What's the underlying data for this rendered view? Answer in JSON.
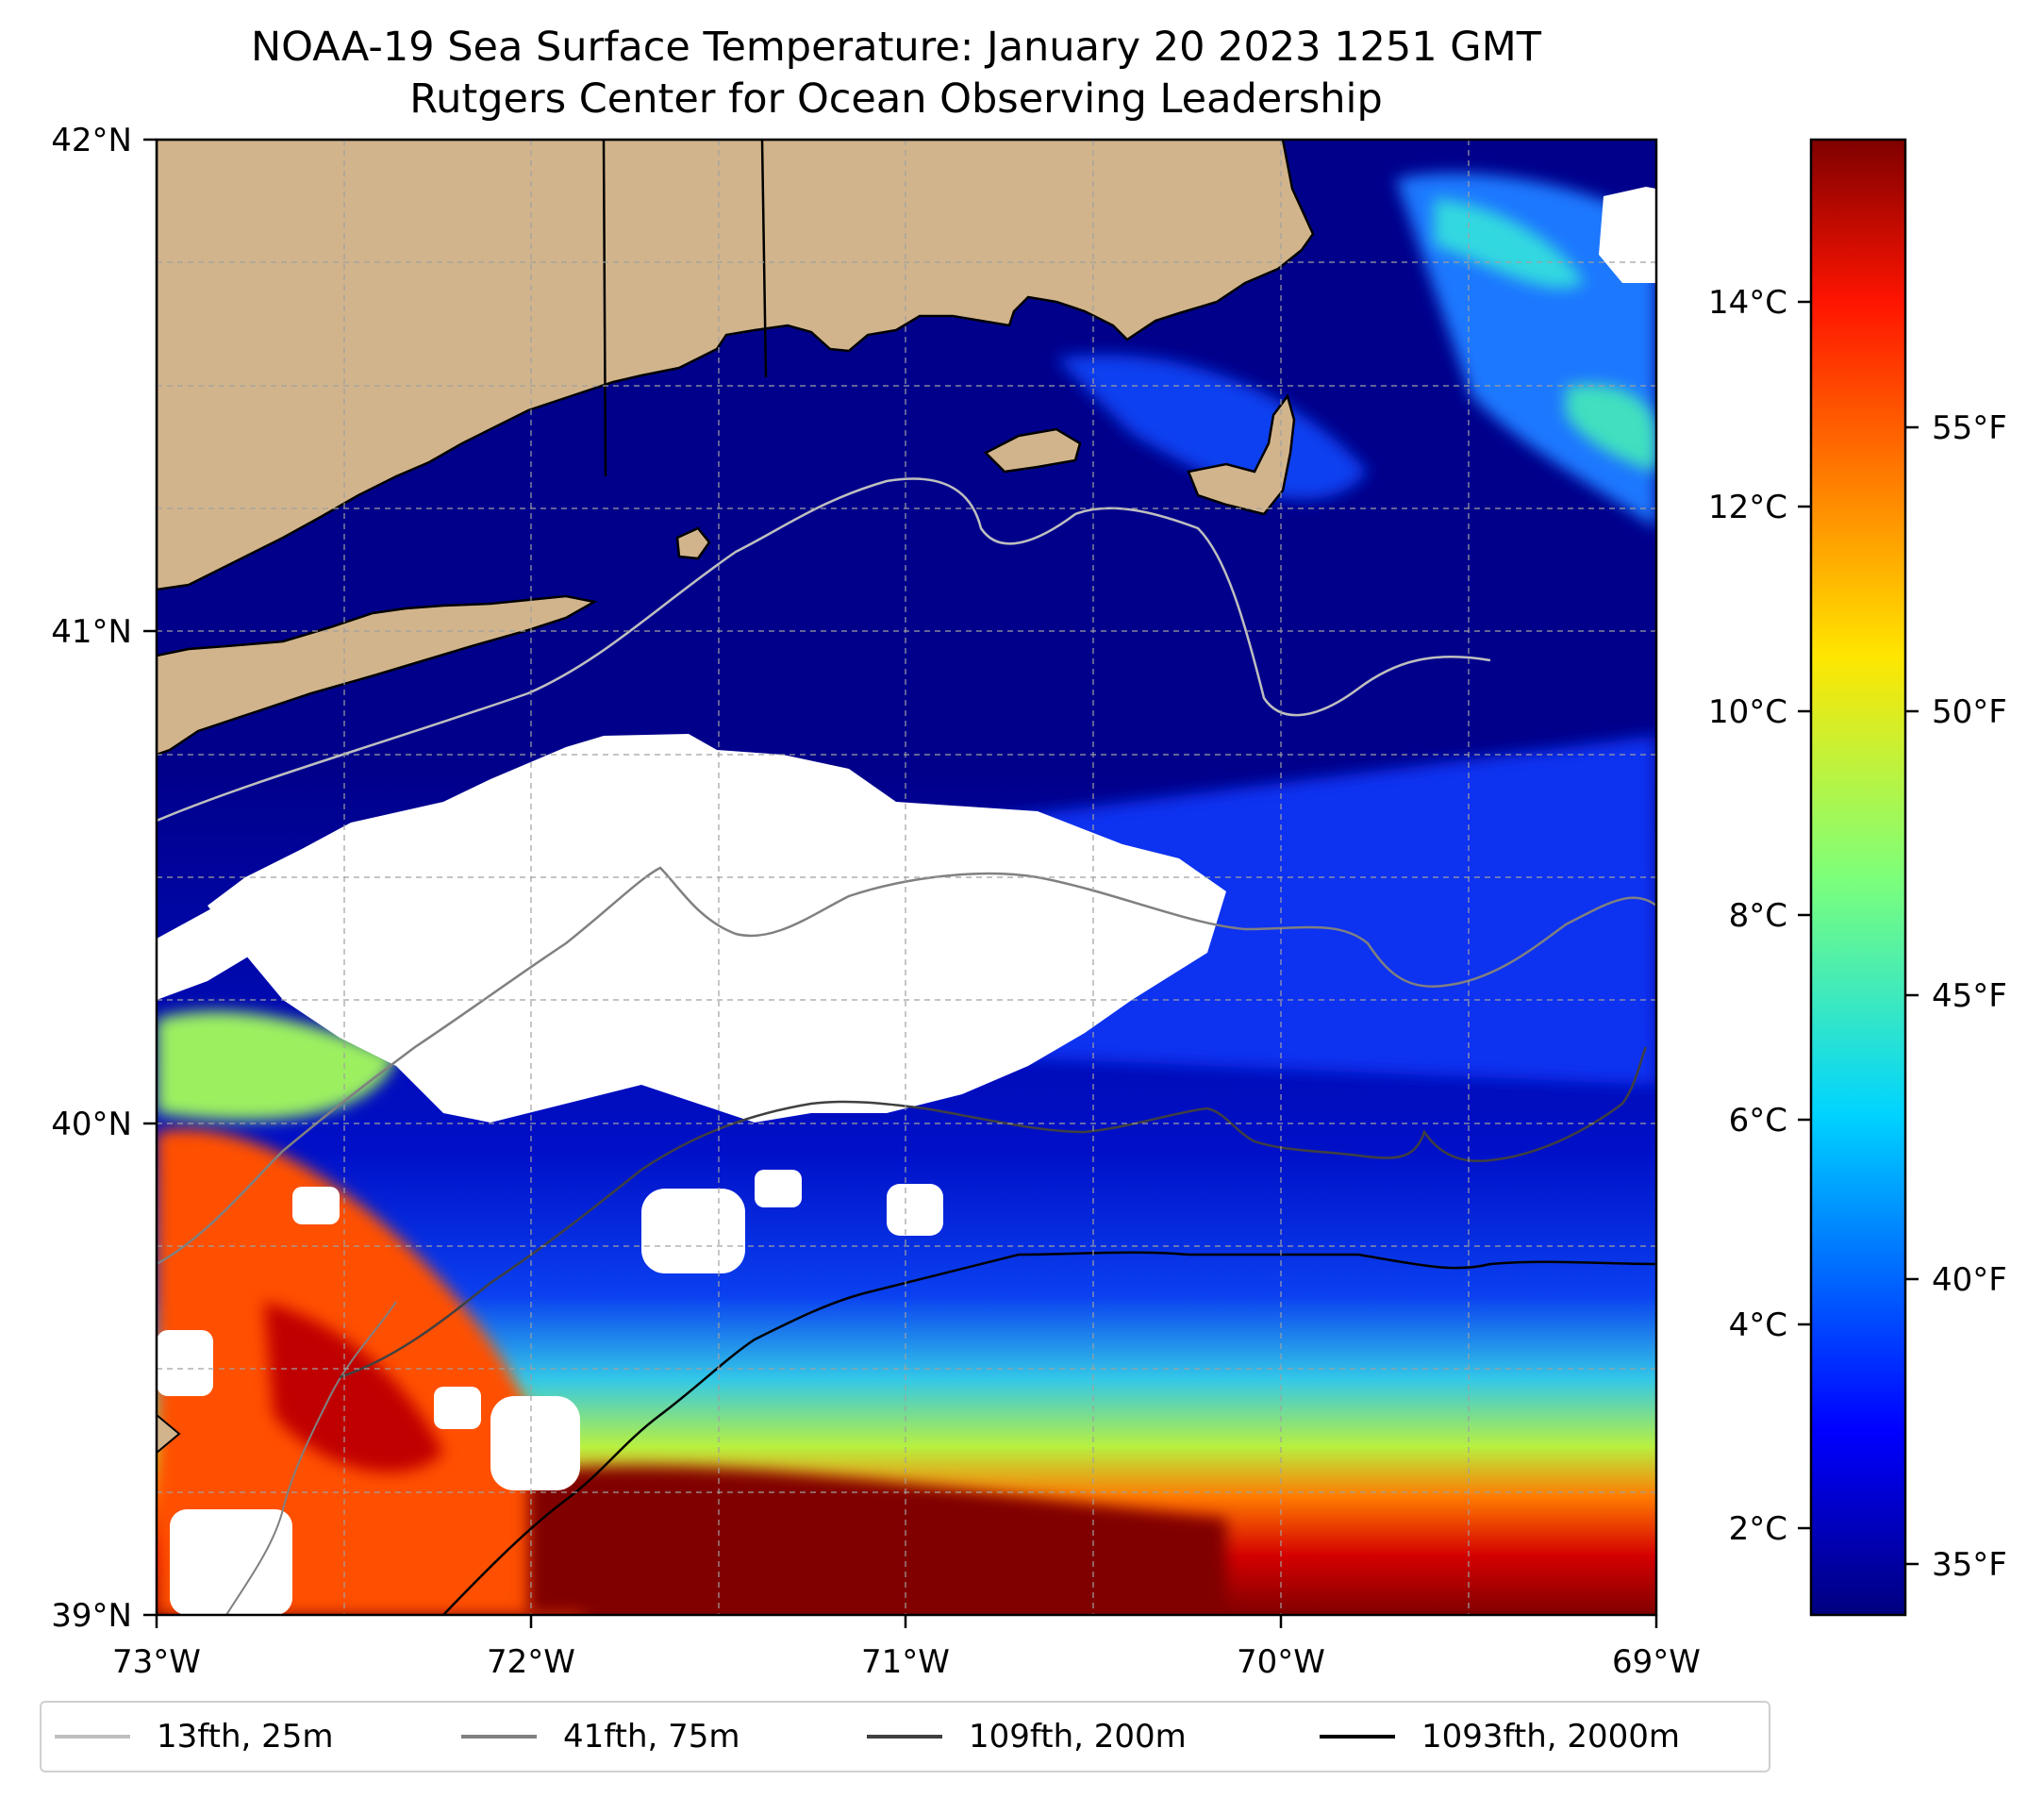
{
  "title": {
    "line1": "NOAA-19 Sea Surface Temperature: January 20 2023 1251 GMT",
    "line2": "Rutgers Center for Ocean Observing Leadership"
  },
  "map": {
    "lon_range": [
      -73,
      -69
    ],
    "lat_range": [
      39,
      42
    ],
    "lon_ticks": [
      "73°W",
      "72°W",
      "71°W",
      "70°W",
      "69°W"
    ],
    "lat_ticks": [
      "39°N",
      "40°N",
      "41°N",
      "42°N"
    ],
    "land_color": "#d2b48c",
    "cold_water_color": "#00008b",
    "cloud_color": "#ffffff"
  },
  "colorbar": {
    "celsius_ticks": [
      "2°C",
      "4°C",
      "6°C",
      "8°C",
      "10°C",
      "12°C",
      "14°C"
    ],
    "fahrenheit_ticks": [
      "35°F",
      "40°F",
      "45°F",
      "50°F",
      "55°F"
    ],
    "colormap": "jet",
    "range_celsius": [
      1.3,
      15.8
    ]
  },
  "legend": [
    {
      "label": "13fth, 25m",
      "color": "#bfbfbf"
    },
    {
      "label": "41fth, 75m",
      "color": "#808080"
    },
    {
      "label": "109fth, 200m",
      "color": "#404040"
    },
    {
      "label": "1093fth, 2000m",
      "color": "#000000"
    }
  ]
}
